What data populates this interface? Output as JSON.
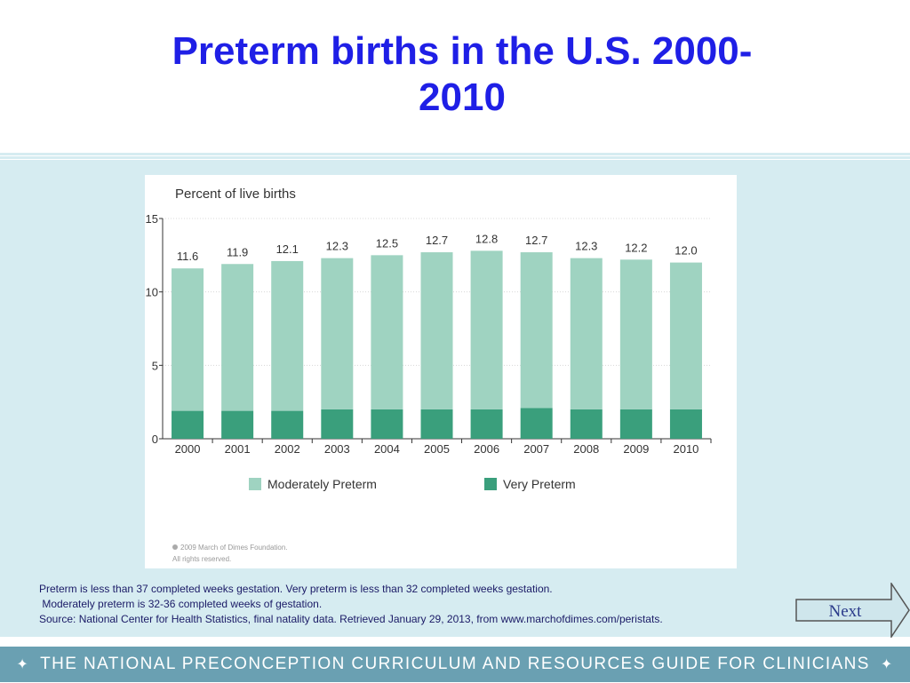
{
  "slide": {
    "title_line1": "Preterm births in the U.S. 2000-",
    "title_line2": "2010"
  },
  "notes": {
    "line1": "Preterm is less than 37 completed weeks gestation. Very preterm is less than 32 completed weeks gestation.",
    "line2": " Moderately preterm is 32-36 completed weeks of gestation.",
    "line3": "Source: National Center for Health Statistics, final natality data. Retrieved January 29, 2013, from www.marchofdimes.com/peristats."
  },
  "next_button": {
    "label": "Next"
  },
  "footer": {
    "text": "THE NATIONAL PRECONCEPTION CURRICULUM AND RESOURCES GUIDE FOR CLINICIANS",
    "diamond": "✦"
  },
  "chart_data": {
    "type": "bar",
    "stacked": true,
    "title": "Percent of live births",
    "ylim": [
      0,
      15
    ],
    "yticks": [
      0,
      5,
      10,
      15
    ],
    "categories": [
      "2000",
      "2001",
      "2002",
      "2003",
      "2004",
      "2005",
      "2006",
      "2007",
      "2008",
      "2009",
      "2010"
    ],
    "totals": [
      11.6,
      11.9,
      12.1,
      12.3,
      12.5,
      12.7,
      12.8,
      12.7,
      12.3,
      12.2,
      12.0
    ],
    "total_labels": [
      "11.6",
      "11.9",
      "12.1",
      "12.3",
      "12.5",
      "12.7",
      "12.8",
      "12.7",
      "12.3",
      "12.2",
      "12.0"
    ],
    "series": [
      {
        "name": "Very Preterm",
        "color": "#3a9f7c",
        "values": [
          1.9,
          1.9,
          1.9,
          2.0,
          2.0,
          2.0,
          2.0,
          2.1,
          2.0,
          2.0,
          2.0
        ]
      },
      {
        "name": "Moderately Preterm",
        "color": "#9fd3c1",
        "values": [
          9.7,
          10.0,
          10.2,
          10.3,
          10.5,
          10.7,
          10.8,
          10.6,
          10.3,
          10.2,
          10.0
        ]
      }
    ],
    "legend": [
      "Moderately Preterm",
      "Very Preterm"
    ],
    "legend_position": "bottom",
    "grid": true,
    "copyright_line1": "2009 March of Dimes Foundation.",
    "copyright_line2": "All rights reserved."
  }
}
